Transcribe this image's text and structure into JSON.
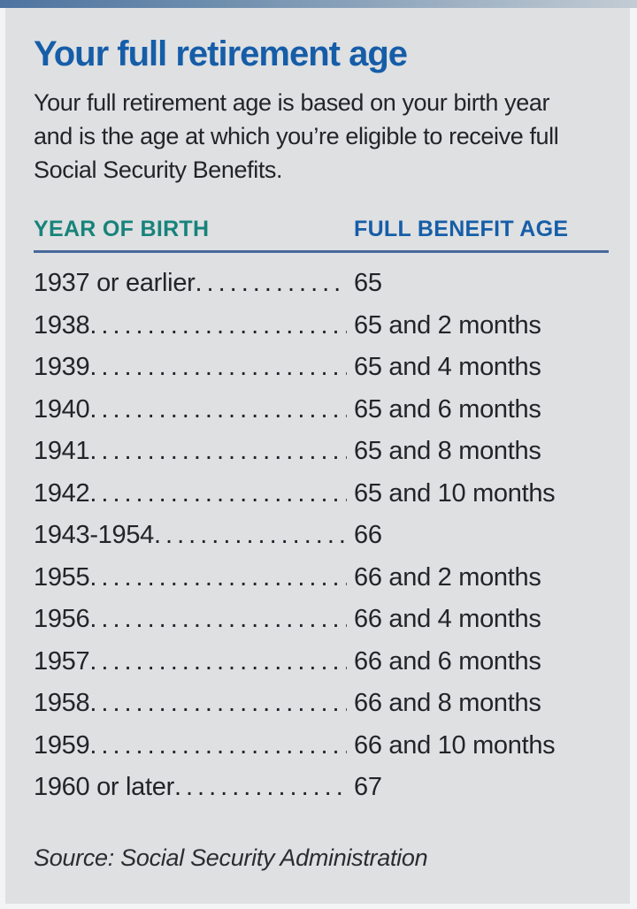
{
  "page": {
    "title": "Your full retirement age",
    "subtitle": "Your full retirement age is based on your birth year and is the age at which you’re eligible to receive full Social Security Benefits.",
    "subtitle_lines": [
      "Your full retirement age is based on your birth year",
      "and is the age at which you’re eligible to receive full",
      "Social Security Benefits."
    ],
    "source": "Source: Social Security Administration"
  },
  "table": {
    "columns": [
      {
        "label": "YEAR OF BIRTH"
      },
      {
        "label": "FULL BENEFIT AGE"
      }
    ],
    "rows": [
      {
        "year": "1937 or earlier",
        "age": "65"
      },
      {
        "year": "1938",
        "age": "65 and 2 months"
      },
      {
        "year": "1939",
        "age": "65 and 4 months"
      },
      {
        "year": "1940",
        "age": "65 and 6 months"
      },
      {
        "year": "1941",
        "age": "65 and 8 months"
      },
      {
        "year": "1942",
        "age": "65 and 10 months"
      },
      {
        "year": "1943-1954",
        "age": "66"
      },
      {
        "year": "1955",
        "age": "66 and 2 months"
      },
      {
        "year": "1956",
        "age": "66 and 4 months"
      },
      {
        "year": "1957",
        "age": "66 and 6 months"
      },
      {
        "year": "1958",
        "age": "66 and 8 months"
      },
      {
        "year": "1959",
        "age": "66 and 10 months"
      },
      {
        "year": "1960 or later",
        "age": "67"
      }
    ]
  },
  "colors": {
    "title_blue": "#165da8",
    "header_teal": "#17837b",
    "rule_blue": "#48699b",
    "panel_gray": "#dee0e2",
    "top_bar_blue": "#4e73a0",
    "text": "#222527"
  }
}
